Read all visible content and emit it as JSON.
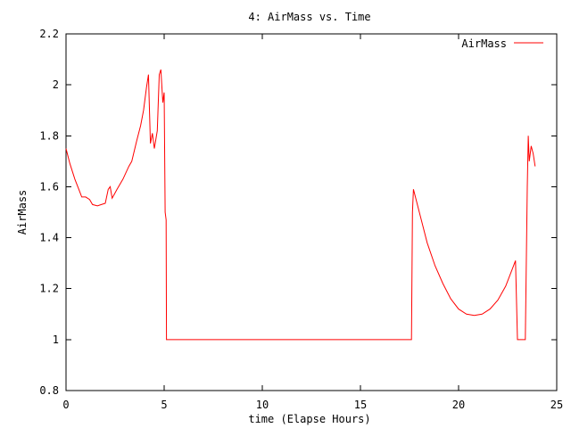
{
  "chart_data": {
    "type": "line",
    "title": "4: AirMass vs. Time",
    "xlabel": "time (Elapse Hours)",
    "ylabel": "AirMass",
    "xlim": [
      0,
      25
    ],
    "ylim": [
      0.8,
      2.2
    ],
    "xticks": [
      0,
      5,
      10,
      15,
      20,
      25
    ],
    "xtick_labels": [
      "0",
      "5",
      "10",
      "15",
      "20",
      "25"
    ],
    "yticks": [
      0.8,
      1.0,
      1.2,
      1.4,
      1.6,
      1.8,
      2.0,
      2.2
    ],
    "ytick_labels": [
      "0.8",
      "1",
      "1.2",
      "1.4",
      "1.6",
      "1.8",
      "2",
      "2.2"
    ],
    "grid": false,
    "legend_position": "top-right",
    "series": [
      {
        "name": "AirMass",
        "color": "#ff0000",
        "points": [
          [
            0.0,
            1.75
          ],
          [
            0.2,
            1.69
          ],
          [
            0.45,
            1.63
          ],
          [
            0.7,
            1.58
          ],
          [
            0.8,
            1.56
          ],
          [
            1.0,
            1.56
          ],
          [
            1.2,
            1.55
          ],
          [
            1.35,
            1.53
          ],
          [
            1.6,
            1.525
          ],
          [
            1.8,
            1.53
          ],
          [
            2.0,
            1.535
          ],
          [
            2.15,
            1.59
          ],
          [
            2.25,
            1.6
          ],
          [
            2.35,
            1.555
          ],
          [
            2.6,
            1.59
          ],
          [
            2.9,
            1.63
          ],
          [
            3.2,
            1.68
          ],
          [
            3.35,
            1.7
          ],
          [
            3.6,
            1.78
          ],
          [
            3.8,
            1.84
          ],
          [
            3.95,
            1.9
          ],
          [
            4.1,
            1.99
          ],
          [
            4.2,
            2.04
          ],
          [
            4.3,
            1.77
          ],
          [
            4.4,
            1.81
          ],
          [
            4.5,
            1.75
          ],
          [
            4.65,
            1.82
          ],
          [
            4.75,
            2.04
          ],
          [
            4.83,
            2.06
          ],
          [
            4.93,
            1.93
          ],
          [
            5.0,
            1.97
          ],
          [
            5.05,
            1.5
          ],
          [
            5.1,
            1.47
          ],
          [
            5.12,
            1.0
          ],
          [
            5.3,
            1.0
          ],
          [
            17.6,
            1.0
          ],
          [
            17.65,
            1.5
          ],
          [
            17.7,
            1.59
          ],
          [
            18.0,
            1.5
          ],
          [
            18.4,
            1.38
          ],
          [
            18.8,
            1.29
          ],
          [
            19.2,
            1.22
          ],
          [
            19.6,
            1.16
          ],
          [
            20.0,
            1.12
          ],
          [
            20.4,
            1.1
          ],
          [
            20.8,
            1.095
          ],
          [
            21.2,
            1.1
          ],
          [
            21.6,
            1.12
          ],
          [
            22.0,
            1.155
          ],
          [
            22.4,
            1.21
          ],
          [
            22.75,
            1.28
          ],
          [
            22.9,
            1.31
          ],
          [
            23.0,
            1.0
          ],
          [
            23.1,
            1.0
          ],
          [
            23.35,
            1.0
          ],
          [
            23.4,
            1.0
          ],
          [
            23.5,
            1.6
          ],
          [
            23.55,
            1.8
          ],
          [
            23.6,
            1.7
          ],
          [
            23.7,
            1.76
          ],
          [
            23.8,
            1.73
          ],
          [
            23.9,
            1.68
          ]
        ]
      }
    ]
  }
}
